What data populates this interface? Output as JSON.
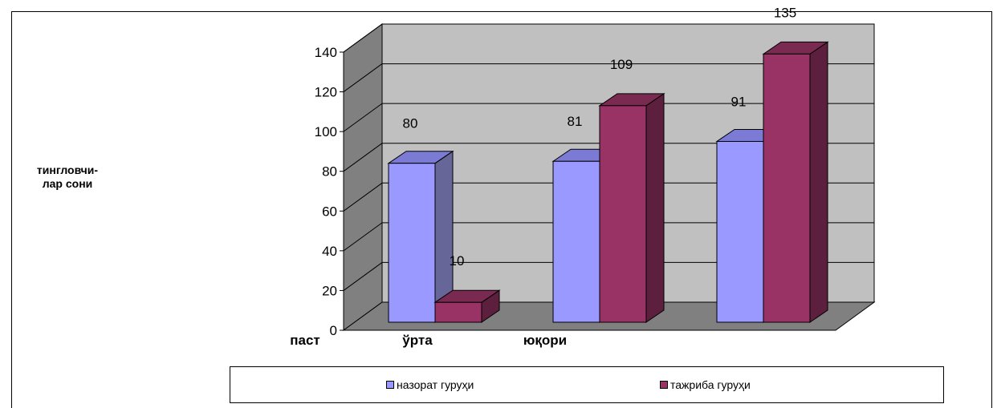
{
  "chart_data": {
    "type": "bar",
    "categories": [
      "паст",
      "ўрта",
      "юқори"
    ],
    "series": [
      {
        "name": "назорат гуруҳи",
        "values": [
          80,
          81,
          91
        ],
        "color": "#9999ff",
        "side_color": "#666699",
        "top_color": "#7b7bd6"
      },
      {
        "name": "тажриба гуруҳи",
        "values": [
          10,
          109,
          135
        ],
        "color": "#993366",
        "side_color": "#5c1f3d",
        "top_color": "#7a2951"
      }
    ],
    "ylabel": "тингловчи-\nлар сони",
    "ylim": [
      0,
      140
    ],
    "yticks": [
      "0",
      "20",
      "40",
      "60",
      "80",
      "100",
      "120",
      "140"
    ],
    "grid": true,
    "legend_position": "bottom",
    "wall_color": "#c0c0c0",
    "floor_color": "#808080",
    "side_wall_color": "#808080"
  }
}
